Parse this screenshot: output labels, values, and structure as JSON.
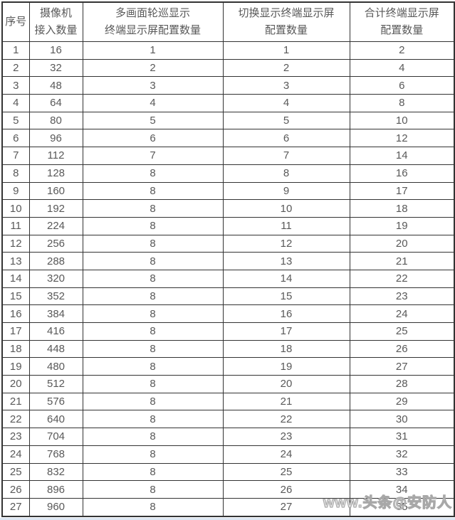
{
  "table": {
    "headers": [
      {
        "line1": "序号",
        "line2": ""
      },
      {
        "line1": "摄像机",
        "line2": "接入数量"
      },
      {
        "line1": "多画面轮巡显示",
        "line2": "终端显示屏配置数量"
      },
      {
        "line1": "切换显示终端显示屏",
        "line2": "配置数量"
      },
      {
        "line1": "合计终端显示屏",
        "line2": "配置数量"
      }
    ],
    "rows": [
      [
        "1",
        "16",
        "1",
        "1",
        "2"
      ],
      [
        "2",
        "32",
        "2",
        "2",
        "4"
      ],
      [
        "3",
        "48",
        "3",
        "3",
        "6"
      ],
      [
        "4",
        "64",
        "4",
        "4",
        "8"
      ],
      [
        "5",
        "80",
        "5",
        "5",
        "10"
      ],
      [
        "6",
        "96",
        "6",
        "6",
        "12"
      ],
      [
        "7",
        "112",
        "7",
        "7",
        "14"
      ],
      [
        "8",
        "128",
        "8",
        "8",
        "16"
      ],
      [
        "9",
        "160",
        "8",
        "9",
        "17"
      ],
      [
        "10",
        "192",
        "8",
        "10",
        "18"
      ],
      [
        "11",
        "224",
        "8",
        "11",
        "19"
      ],
      [
        "12",
        "256",
        "8",
        "12",
        "20"
      ],
      [
        "13",
        "288",
        "8",
        "13",
        "21"
      ],
      [
        "14",
        "320",
        "8",
        "14",
        "22"
      ],
      [
        "15",
        "352",
        "8",
        "15",
        "23"
      ],
      [
        "16",
        "384",
        "8",
        "16",
        "24"
      ],
      [
        "17",
        "416",
        "8",
        "17",
        "25"
      ],
      [
        "18",
        "448",
        "8",
        "18",
        "26"
      ],
      [
        "19",
        "480",
        "8",
        "19",
        "27"
      ],
      [
        "20",
        "512",
        "8",
        "20",
        "28"
      ],
      [
        "21",
        "576",
        "8",
        "21",
        "29"
      ],
      [
        "22",
        "640",
        "8",
        "22",
        "30"
      ],
      [
        "23",
        "704",
        "8",
        "23",
        "31"
      ],
      [
        "24",
        "768",
        "8",
        "24",
        "32"
      ],
      [
        "25",
        "832",
        "8",
        "25",
        "33"
      ],
      [
        "26",
        "896",
        "8",
        "26",
        "34"
      ],
      [
        "27",
        "960",
        "8",
        "27",
        "35"
      ]
    ]
  },
  "watermark": "www.头条@安防人",
  "colors": {
    "border": "#333333",
    "text": "#595959",
    "watermark_stroke": "#a8a8a8",
    "bottom_strip": "#dce6f2"
  }
}
